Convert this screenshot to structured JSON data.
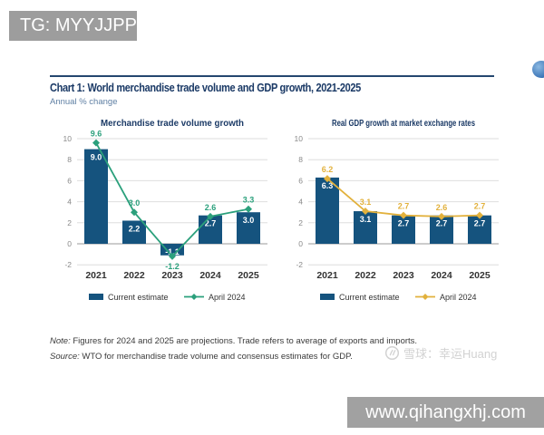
{
  "overlays": {
    "tg_label": "TG: MYYJJPP",
    "website": "www.qihangxhj.com"
  },
  "watermark": {
    "text": "雪球：幸运Huang",
    "icon": "xueqiu-snowball-logo"
  },
  "header": {
    "title": "Chart 1: World merchandise trade volume and GDP growth, 2021-2025",
    "subtitle": "Annual % change"
  },
  "footnotes": {
    "note_label": "Note:",
    "note_text": " Figures for 2024 and 2025 are projections. Trade refers to average of exports and imports.",
    "source_label": "Source:",
    "source_text": " WTO for merchandise trade volume and consensus estimates for GDP."
  },
  "colors": {
    "bar_navy": "#15537e",
    "green_line": "#2ba07c",
    "gold_line": "#e2b13c",
    "navy_text": "#1b3a66",
    "subtitle_text": "#5e7fa3",
    "overlay_gray": "#9d9d9d"
  },
  "chart_data": [
    {
      "type": "bar",
      "title": "Merchandise trade volume growth",
      "categories": [
        "2021",
        "2022",
        "2023",
        "2024",
        "2025"
      ],
      "series": [
        {
          "name": "Current estimate",
          "kind": "bar",
          "color": "#15537e",
          "values": [
            9.0,
            2.2,
            -1.1,
            2.7,
            3.0
          ]
        },
        {
          "name": "April 2024",
          "kind": "line",
          "color": "#2ba07c",
          "values": [
            9.6,
            3.0,
            -1.2,
            2.6,
            3.3
          ]
        }
      ],
      "ylim": [
        -2,
        10
      ],
      "yticks": [
        10,
        8,
        6,
        4,
        2,
        0,
        -2
      ],
      "grid": true,
      "legend_position": "bottom"
    },
    {
      "type": "bar",
      "title": "Real GDP growth at market exchange rates",
      "categories": [
        "2021",
        "2022",
        "2023",
        "2024",
        "2025"
      ],
      "series": [
        {
          "name": "Current estimate",
          "kind": "bar",
          "color": "#15537e",
          "values": [
            6.3,
            3.1,
            2.7,
            2.7,
            2.7
          ]
        },
        {
          "name": "April 2024",
          "kind": "line",
          "color": "#e2b13c",
          "values": [
            6.2,
            3.1,
            2.7,
            2.6,
            2.7
          ]
        }
      ],
      "ylim": [
        -2,
        10
      ],
      "yticks": [
        10,
        8,
        6,
        4,
        2,
        0,
        -2
      ],
      "grid": true,
      "legend_position": "bottom"
    }
  ]
}
